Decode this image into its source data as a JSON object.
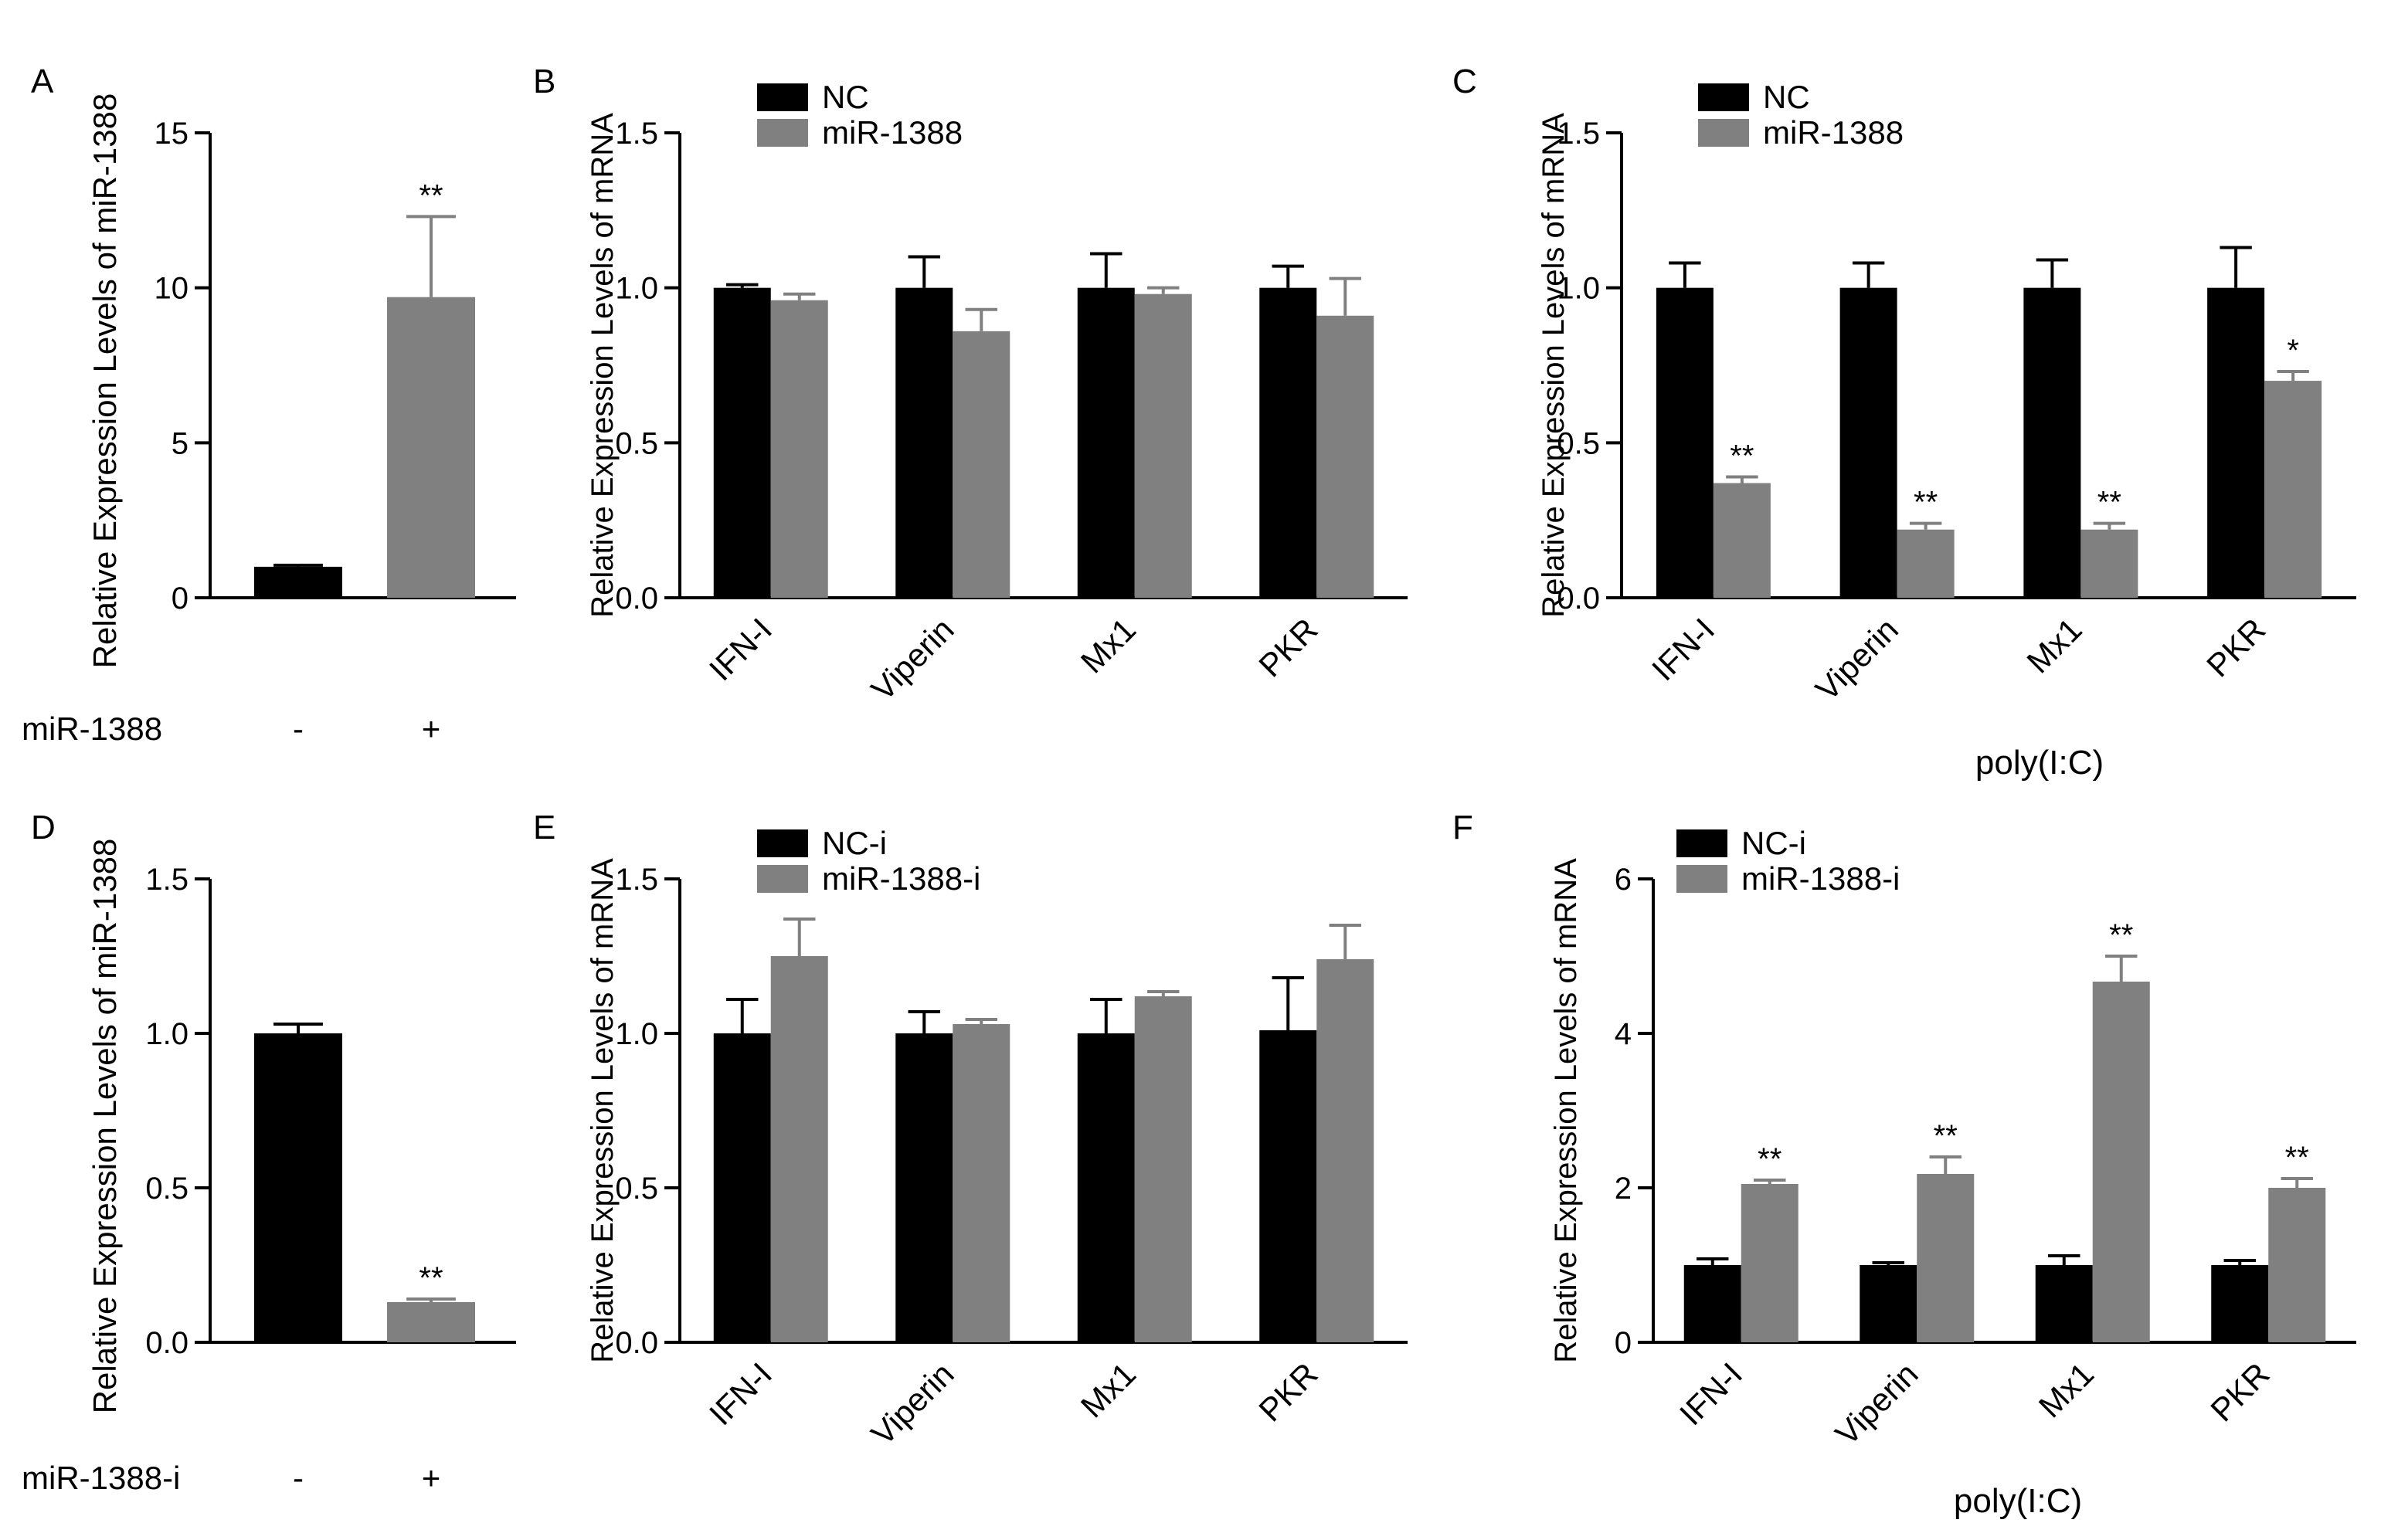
{
  "figure": {
    "colors": {
      "black_bar": "#000000",
      "gray_bar": "#808080",
      "axis": "#000000"
    }
  },
  "chart_data": [
    {
      "panel": "A",
      "type": "bar",
      "ylabel": "Relative  Expression Levels of miR-1388",
      "ylim": [
        0,
        15
      ],
      "yticks": [
        "0",
        "5",
        "10",
        "15"
      ],
      "ytick_values": [
        0,
        5,
        10,
        15
      ],
      "categories": [
        "-",
        "+"
      ],
      "row_label": "miR-1388",
      "bars": [
        {
          "value": 1.0,
          "error": 0.05,
          "color": "#000000",
          "sig": ""
        },
        {
          "value": 9.7,
          "error": 2.6,
          "color": "#808080",
          "sig": "**"
        }
      ]
    },
    {
      "panel": "B",
      "type": "bar",
      "ylabel": "Relative Expression Levels of mRNA",
      "ylim": [
        0,
        1.5
      ],
      "yticks": [
        "0.0",
        "0.5",
        "1.0",
        "1.5"
      ],
      "ytick_values": [
        0,
        0.5,
        1.0,
        1.5
      ],
      "categories": [
        "IFN-I",
        "Viperin",
        "Mx1",
        "PKR"
      ],
      "legend": [
        "NC",
        "miR-1388"
      ],
      "series": [
        {
          "name": "NC",
          "color": "#000000",
          "values": [
            1.0,
            1.0,
            1.0,
            1.0
          ],
          "errors": [
            0.01,
            0.1,
            0.11,
            0.07
          ],
          "sig": [
            "",
            "",
            "",
            ""
          ]
        },
        {
          "name": "miR-1388",
          "color": "#808080",
          "values": [
            0.96,
            0.86,
            0.98,
            0.91
          ],
          "errors": [
            0.02,
            0.07,
            0.02,
            0.12
          ],
          "sig": [
            "",
            "",
            "",
            ""
          ]
        }
      ]
    },
    {
      "panel": "C",
      "type": "bar",
      "ylabel": "Relative Expression Levels of mRNA",
      "ylim": [
        0,
        1.5
      ],
      "yticks": [
        "0.0",
        "0.5",
        "1.0",
        "1.5"
      ],
      "ytick_values": [
        0,
        0.5,
        1.0,
        1.5
      ],
      "categories": [
        "IFN-I",
        "Viperin",
        "Mx1",
        "PKR"
      ],
      "legend": [
        "NC",
        "miR-1388"
      ],
      "xlabel": "poly(I:C)",
      "series": [
        {
          "name": "NC",
          "color": "#000000",
          "values": [
            1.0,
            1.0,
            1.0,
            1.0
          ],
          "errors": [
            0.08,
            0.08,
            0.09,
            0.13
          ],
          "sig": [
            "",
            "",
            "",
            ""
          ]
        },
        {
          "name": "miR-1388",
          "color": "#808080",
          "values": [
            0.37,
            0.22,
            0.22,
            0.7
          ],
          "errors": [
            0.02,
            0.02,
            0.02,
            0.03
          ],
          "sig": [
            "**",
            "**",
            "**",
            "*"
          ]
        }
      ]
    },
    {
      "panel": "D",
      "type": "bar",
      "ylabel": "Relative  Expression Levels of miR-1388",
      "ylim": [
        0,
        1.5
      ],
      "yticks": [
        "0.0",
        "0.5",
        "1.0",
        "1.5"
      ],
      "ytick_values": [
        0,
        0.5,
        1.0,
        1.5
      ],
      "categories": [
        "-",
        "+"
      ],
      "row_label": "miR-1388-i",
      "bars": [
        {
          "value": 1.0,
          "error": 0.03,
          "color": "#000000",
          "sig": ""
        },
        {
          "value": 0.13,
          "error": 0.01,
          "color": "#808080",
          "sig": "**"
        }
      ]
    },
    {
      "panel": "E",
      "type": "bar",
      "ylabel": "Relative Expression Levels of mRNA",
      "ylim": [
        0,
        1.5
      ],
      "yticks": [
        "0.0",
        "0.5",
        "1.0",
        "1.5"
      ],
      "ytick_values": [
        0,
        0.5,
        1.0,
        1.5
      ],
      "categories": [
        "IFN-I",
        "Viperin",
        "Mx1",
        "PKR"
      ],
      "legend": [
        "NC-i",
        "miR-1388-i"
      ],
      "series": [
        {
          "name": "NC-i",
          "color": "#000000",
          "values": [
            1.0,
            1.0,
            1.0,
            1.01
          ],
          "errors": [
            0.11,
            0.07,
            0.11,
            0.17
          ],
          "sig": [
            "",
            "",
            "",
            ""
          ]
        },
        {
          "name": "miR-1388-i",
          "color": "#808080",
          "values": [
            1.25,
            1.03,
            1.12,
            1.24
          ],
          "errors": [
            0.12,
            0.015,
            0.015,
            0.11
          ],
          "sig": [
            "",
            "",
            "",
            ""
          ]
        }
      ]
    },
    {
      "panel": "F",
      "type": "bar",
      "ylabel": "Relative Expression Levels of mRNA",
      "ylim": [
        0,
        6
      ],
      "yticks": [
        "0",
        "2",
        "4",
        "6"
      ],
      "ytick_values": [
        0,
        2,
        4,
        6
      ],
      "categories": [
        "IFN-I",
        "Viperin",
        "Mx1",
        "PKR"
      ],
      "legend": [
        "NC-i",
        "miR-1388-i"
      ],
      "xlabel": "poly(I:C)",
      "series": [
        {
          "name": "NC-i",
          "color": "#000000",
          "values": [
            1.0,
            1.0,
            1.0,
            1.0
          ],
          "errors": [
            0.08,
            0.03,
            0.12,
            0.06
          ],
          "sig": [
            "",
            "",
            "",
            ""
          ]
        },
        {
          "name": "miR-1388-i",
          "color": "#808080",
          "values": [
            2.05,
            2.18,
            4.67,
            2.0
          ],
          "errors": [
            0.05,
            0.22,
            0.33,
            0.12
          ],
          "sig": [
            "**",
            "**",
            "**",
            "**"
          ]
        }
      ]
    }
  ]
}
